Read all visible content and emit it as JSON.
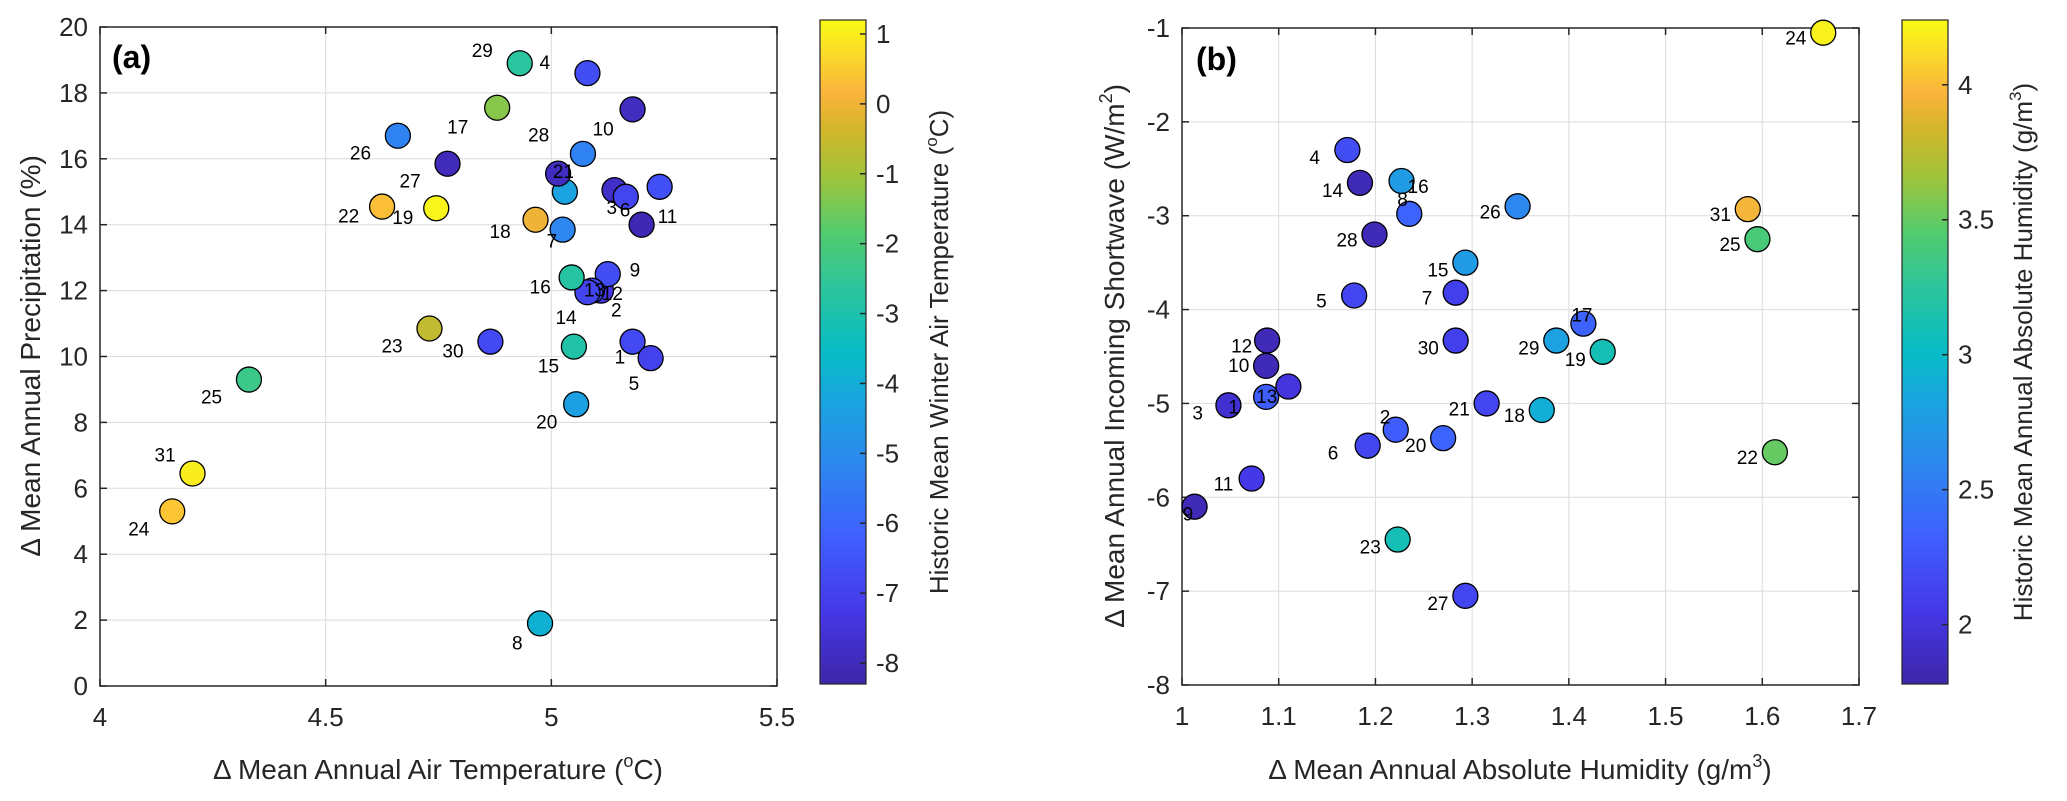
{
  "chart_data": [
    {
      "type": "scatter",
      "panel_label": "(a)",
      "xlabel": "Δ Mean Annual Air Temperature (",
      "xlabel_sup": "o",
      "xlabel_tail": "C)",
      "ylabel": "Δ Mean Annual Precipitation (%)",
      "xlim": [
        4,
        5.5
      ],
      "ylim": [
        0,
        20
      ],
      "xticks": [
        4,
        4.5,
        5,
        5.5
      ],
      "xtick_labels": [
        "4",
        "4.5",
        "5",
        "5.5"
      ],
      "yticks": [
        0,
        2,
        4,
        6,
        8,
        10,
        12,
        14,
        16,
        18,
        20
      ],
      "ytick_labels": [
        "0",
        "2",
        "4",
        "6",
        "8",
        "10",
        "12",
        "14",
        "16",
        "18",
        "20"
      ],
      "grid": true,
      "colorbar": {
        "label": "Historic Mean Winter Air Temperature (",
        "label_sup": "o",
        "label_tail": "C)",
        "range": [
          -8.3,
          1.2
        ],
        "ticks": [
          1,
          0,
          -1,
          -2,
          -3,
          -4,
          -5,
          -6,
          -7,
          -8
        ],
        "tick_labels": [
          "1",
          "0",
          "-1",
          "-2",
          "-3",
          "-4",
          "-5",
          "-6",
          "-7",
          "-8"
        ],
        "colormap": "parula"
      },
      "points": [
        {
          "id": "1",
          "x": 5.18,
          "y": 10.45,
          "c": -6.8,
          "lx": -1,
          "ly": 1
        },
        {
          "id": "2",
          "x": 5.11,
          "y": 12.0,
          "c": -7.3,
          "lx": -1,
          "ly": 1
        },
        {
          "id": "3",
          "x": 5.14,
          "y": 15.05,
          "c": -7.8,
          "lx": -1,
          "ly": 1
        },
        {
          "id": "4",
          "x": 5.08,
          "y": 18.6,
          "c": -6.7,
          "lx": -1,
          "ly": 1
        },
        {
          "id": "5",
          "x": 5.22,
          "y": 9.95,
          "c": -7.0,
          "lx": -1,
          "ly": 1
        },
        {
          "id": "6",
          "x": 5.165,
          "y": 14.85,
          "c": -6.9,
          "lx": -1,
          "ly": 1
        },
        {
          "id": "7",
          "x": 5.025,
          "y": 13.85,
          "c": -5.2,
          "lx": -1,
          "ly": 1
        },
        {
          "id": "8",
          "x": 4.975,
          "y": 1.9,
          "c": -3.9,
          "lx": -1,
          "ly": 1
        },
        {
          "id": "9",
          "x": 5.2,
          "y": 14.0,
          "c": -8.1,
          "lx": -1,
          "ly": 1
        },
        {
          "id": "10",
          "x": 5.18,
          "y": 17.5,
          "c": -7.9,
          "lx": -1,
          "ly": 1
        },
        {
          "id": "11",
          "x": 5.24,
          "y": 15.15,
          "c": -6.6,
          "lx": -1,
          "ly": 1
        },
        {
          "id": "12",
          "x": 5.125,
          "y": 12.5,
          "c": -6.7,
          "lx": -1,
          "ly": 1
        },
        {
          "id": "13",
          "x": 5.09,
          "y": 12.0,
          "c": -6.9,
          "lx": -1,
          "ly": 1
        },
        {
          "id": "14",
          "x": 5.08,
          "y": 11.95,
          "c": -6.9,
          "lx": -1,
          "ly": 1
        },
        {
          "id": "15",
          "x": 5.05,
          "y": 10.3,
          "c": -2.9,
          "lx": -1,
          "ly": 1
        },
        {
          "id": "16",
          "x": 5.045,
          "y": 12.4,
          "c": -2.8,
          "lx": -1,
          "ly": 1
        },
        {
          "id": "17",
          "x": 4.88,
          "y": 17.55,
          "c": -1.3,
          "lx": -1,
          "ly": 1
        },
        {
          "id": "18",
          "x": 4.965,
          "y": 14.15,
          "c": 0.0,
          "lx": -1,
          "ly": 1
        },
        {
          "id": "19",
          "x": 4.745,
          "y": 14.5,
          "c": 1.1,
          "lx": -1,
          "ly": 1
        },
        {
          "id": "20",
          "x": 5.055,
          "y": 8.55,
          "c": -4.4,
          "lx": -1,
          "ly": 1
        },
        {
          "id": "21",
          "x": 5.03,
          "y": 15.0,
          "c": -4.3,
          "lx": -1,
          "ly": 1
        },
        {
          "id": "22",
          "x": 4.625,
          "y": 14.55,
          "c": 0.3,
          "lx": -1,
          "ly": 1
        },
        {
          "id": "23",
          "x": 4.73,
          "y": 10.85,
          "c": -0.6,
          "lx": -1,
          "ly": 1
        },
        {
          "id": "24",
          "x": 4.16,
          "y": 5.3,
          "c": 0.4,
          "lx": -1,
          "ly": 1
        },
        {
          "id": "25",
          "x": 4.33,
          "y": 9.3,
          "c": -2.3,
          "lx": -1,
          "ly": 1
        },
        {
          "id": "26",
          "x": 4.66,
          "y": 16.7,
          "c": -5.3,
          "lx": -1,
          "ly": 1
        },
        {
          "id": "27",
          "x": 4.77,
          "y": 15.85,
          "c": -8.0,
          "lx": -1,
          "ly": 1
        },
        {
          "id": "28",
          "x": 5.015,
          "y": 15.55,
          "c": -7.9,
          "lx": -1,
          "ly": 1
        },
        {
          "id": "29",
          "x": 4.93,
          "y": 18.9,
          "c": -2.7,
          "lx": -1,
          "ly": 1
        },
        {
          "id": "30",
          "x": 4.865,
          "y": 10.45,
          "c": -6.8,
          "lx": -1,
          "ly": 1
        },
        {
          "id": "31",
          "x": 4.205,
          "y": 6.45,
          "c": 1.0,
          "lx": -1,
          "ly": 1
        },
        {
          "id": "",
          "x": 5.07,
          "y": 16.15,
          "c": -5.3,
          "lx": 0,
          "ly": 0
        }
      ]
    },
    {
      "type": "scatter",
      "panel_label": "(b)",
      "xlabel": "Δ Mean Annual Absolute Humidity (g/m",
      "xlabel_sup": "3",
      "xlabel_tail": ")",
      "ylabel": "Δ Mean Annual Incoming Shortwave (W/m",
      "ylabel_sup": "2",
      "ylabel_tail": ")",
      "xlim": [
        1,
        1.7
      ],
      "ylim": [
        -8,
        -1
      ],
      "xticks": [
        1,
        1.1,
        1.2,
        1.3,
        1.4,
        1.5,
        1.6,
        1.7
      ],
      "xtick_labels": [
        "1",
        "1.1",
        "1.2",
        "1.3",
        "1.4",
        "1.5",
        "1.6",
        "1.7"
      ],
      "yticks": [
        -8,
        -7,
        -6,
        -5,
        -4,
        -3,
        -2,
        -1
      ],
      "ytick_labels": [
        "-8",
        "-7",
        "-6",
        "-5",
        "-4",
        "-3",
        "-2",
        "-1"
      ],
      "grid": true,
      "colorbar": {
        "label": "Historic Mean Annual Absolute Humidity (g/m",
        "label_sup": "3",
        "label_tail": ")",
        "range": [
          1.78,
          4.24
        ],
        "ticks": [
          4,
          3.5,
          3,
          2.5,
          2
        ],
        "tick_labels": [
          "4",
          "3.5",
          "3",
          "2.5",
          "2"
        ],
        "colormap": "parula"
      },
      "points": [
        {
          "id": "1",
          "x": 1.048,
          "y": -5.02,
          "c": 1.95
        },
        {
          "id": "2",
          "x": 1.221,
          "y": -5.28,
          "c": 2.3
        },
        {
          "id": "3",
          "x": 1.048,
          "y": -5.02,
          "c": 1.95,
          "label_only": true
        },
        {
          "id": "4",
          "x": 1.171,
          "y": -2.3,
          "c": 2.2
        },
        {
          "id": "5",
          "x": 1.178,
          "y": -3.85,
          "c": 2.15
        },
        {
          "id": "6",
          "x": 1.192,
          "y": -5.45,
          "c": 2.15
        },
        {
          "id": "7",
          "x": 1.283,
          "y": -3.82,
          "c": 2.1
        },
        {
          "id": "8",
          "x": 1.235,
          "y": -2.98,
          "c": 2.35
        },
        {
          "id": "9",
          "x": 1.013,
          "y": -6.1,
          "c": 1.85
        },
        {
          "id": "10",
          "x": 1.087,
          "y": -4.6,
          "c": 1.85
        },
        {
          "id": "11",
          "x": 1.072,
          "y": -5.8,
          "c": 2.05
        },
        {
          "id": "12",
          "x": 1.088,
          "y": -4.33,
          "c": 1.85
        },
        {
          "id": "13",
          "x": 1.087,
          "y": -4.93,
          "c": 2.3
        },
        {
          "id": "",
          "x": 1.11,
          "y": -4.82,
          "c": 2.0
        },
        {
          "id": "14",
          "x": 1.184,
          "y": -2.65,
          "c": 1.85
        },
        {
          "id": "15",
          "x": 1.293,
          "y": -3.5,
          "c": 2.75
        },
        {
          "id": "16",
          "x": 1.227,
          "y": -2.63,
          "c": 2.75
        },
        {
          "id": "17",
          "x": 1.415,
          "y": -4.15,
          "c": 2.35
        },
        {
          "id": "18",
          "x": 1.372,
          "y": -5.07,
          "c": 2.9
        },
        {
          "id": "19",
          "x": 1.435,
          "y": -4.45,
          "c": 3.1
        },
        {
          "id": "20",
          "x": 1.27,
          "y": -5.37,
          "c": 2.35
        },
        {
          "id": "21",
          "x": 1.315,
          "y": -5.0,
          "c": 2.15
        },
        {
          "id": "22",
          "x": 1.613,
          "y": -5.52,
          "c": 3.5
        },
        {
          "id": "23",
          "x": 1.223,
          "y": -6.45,
          "c": 3.1
        },
        {
          "id": "24",
          "x": 1.663,
          "y": -1.05,
          "c": 4.2
        },
        {
          "id": "25",
          "x": 1.595,
          "y": -3.25,
          "c": 3.4
        },
        {
          "id": "26",
          "x": 1.347,
          "y": -2.9,
          "c": 2.6
        },
        {
          "id": "27",
          "x": 1.293,
          "y": -7.05,
          "c": 2.15
        },
        {
          "id": "28",
          "x": 1.199,
          "y": -3.2,
          "c": 1.85
        },
        {
          "id": "29",
          "x": 1.387,
          "y": -4.33,
          "c": 2.8
        },
        {
          "id": "30",
          "x": 1.283,
          "y": -4.33,
          "c": 2.1
        },
        {
          "id": "31",
          "x": 1.585,
          "y": -2.93,
          "c": 3.95
        }
      ]
    }
  ]
}
